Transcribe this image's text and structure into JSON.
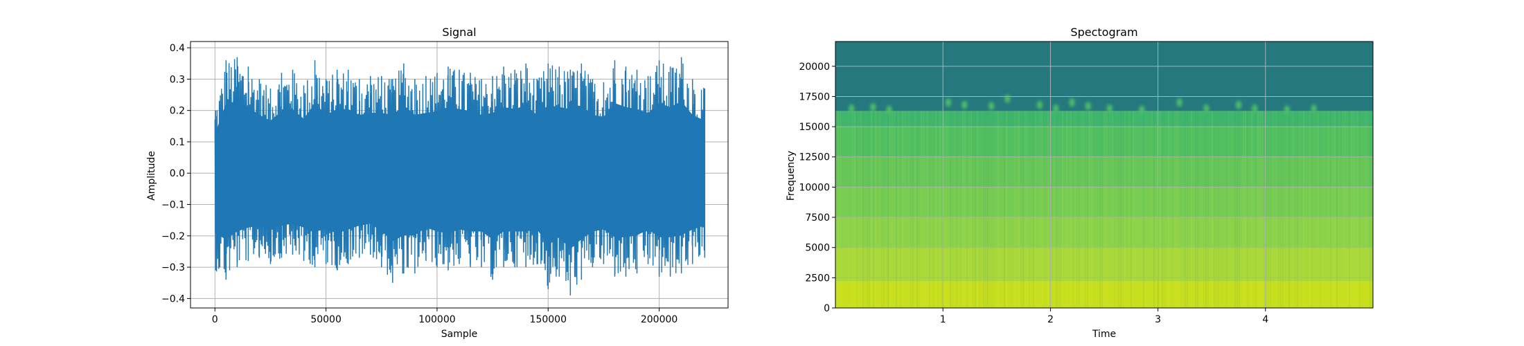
{
  "figure": {
    "background": "#ffffff"
  },
  "chart_data": [
    {
      "type": "line",
      "title": "Signal",
      "xlabel": "Sample",
      "ylabel": "Amplitude",
      "xlim": [
        -11000,
        231000
      ],
      "ylim": [
        -0.43,
        0.42
      ],
      "xticks": [
        0,
        50000,
        100000,
        150000,
        200000
      ],
      "xtick_labels": [
        "0",
        "50000",
        "100000",
        "150000",
        "200000"
      ],
      "yticks": [
        -0.4,
        -0.3,
        -0.2,
        -0.1,
        0.0,
        0.1,
        0.2,
        0.3,
        0.4
      ],
      "ytick_labels": [
        "−0.4",
        "−0.3",
        "−0.2",
        "−0.1",
        "0.0",
        "0.1",
        "0.2",
        "0.3",
        "0.4"
      ],
      "grid": true,
      "color": "#1f77b4",
      "series": [
        {
          "x": [
            0,
            5000,
            10000,
            15000,
            20000,
            25000,
            30000,
            35000,
            40000,
            45000,
            50000,
            55000,
            60000,
            65000,
            70000,
            75000,
            80000,
            85000,
            90000,
            95000,
            100000,
            105000,
            110000,
            115000,
            120000,
            125000,
            130000,
            135000,
            140000,
            145000,
            150000,
            155000,
            160000,
            165000,
            170000,
            175000,
            180000,
            185000,
            190000,
            195000,
            200000,
            205000,
            210000,
            215000,
            220500
          ],
          "max": [
            0.2,
            0.36,
            0.37,
            0.34,
            0.3,
            0.27,
            0.32,
            0.33,
            0.28,
            0.36,
            0.3,
            0.33,
            0.33,
            0.3,
            0.31,
            0.31,
            0.3,
            0.35,
            0.3,
            0.31,
            0.32,
            0.34,
            0.33,
            0.32,
            0.3,
            0.31,
            0.34,
            0.33,
            0.35,
            0.3,
            0.35,
            0.34,
            0.33,
            0.35,
            0.3,
            0.29,
            0.36,
            0.34,
            0.33,
            0.31,
            0.36,
            0.34,
            0.37,
            0.3,
            0.27
          ],
          "min": [
            -0.31,
            -0.34,
            -0.3,
            -0.28,
            -0.27,
            -0.29,
            -0.27,
            -0.26,
            -0.28,
            -0.3,
            -0.29,
            -0.31,
            -0.29,
            -0.27,
            -0.26,
            -0.3,
            -0.35,
            -0.32,
            -0.32,
            -0.28,
            -0.3,
            -0.31,
            -0.29,
            -0.3,
            -0.3,
            -0.34,
            -0.3,
            -0.3,
            -0.3,
            -0.29,
            -0.37,
            -0.33,
            -0.39,
            -0.34,
            -0.3,
            -0.29,
            -0.33,
            -0.33,
            -0.32,
            -0.29,
            -0.33,
            -0.33,
            -0.32,
            -0.29,
            -0.27
          ]
        }
      ]
    },
    {
      "type": "heatmap",
      "title": "Spectogram",
      "xlabel": "Time",
      "ylabel": "Frequency",
      "xlim": [
        0,
        5
      ],
      "ylim": [
        0,
        22050
      ],
      "xticks": [
        1,
        2,
        3,
        4
      ],
      "xtick_labels": [
        "1",
        "2",
        "3",
        "4"
      ],
      "yticks": [
        0,
        2500,
        5000,
        7500,
        10000,
        12500,
        15000,
        17500,
        20000
      ],
      "ytick_labels": [
        "0",
        "2500",
        "5000",
        "7500",
        "10000",
        "12500",
        "15000",
        "17500",
        "20000"
      ],
      "grid": true,
      "colormap": "viridis",
      "frequency_bands": [
        {
          "from": 0,
          "to": 2200,
          "color": "#c8df1e"
        },
        {
          "from": 2200,
          "to": 5000,
          "color": "#a8d83a"
        },
        {
          "from": 5000,
          "to": 7500,
          "color": "#8cd24a"
        },
        {
          "from": 7500,
          "to": 10000,
          "color": "#77cc52"
        },
        {
          "from": 10000,
          "to": 12500,
          "color": "#66c659"
        },
        {
          "from": 12500,
          "to": 15000,
          "color": "#52c060"
        },
        {
          "from": 15000,
          "to": 16300,
          "color": "#3fb66c"
        },
        {
          "from": 16300,
          "to": 22050,
          "color": "#25787d"
        }
      ],
      "bursts": [
        {
          "t": 0.15,
          "f": 16500
        },
        {
          "t": 0.35,
          "f": 16600
        },
        {
          "t": 0.5,
          "f": 16400
        },
        {
          "t": 1.05,
          "f": 17000
        },
        {
          "t": 1.2,
          "f": 16800
        },
        {
          "t": 1.45,
          "f": 16700
        },
        {
          "t": 1.6,
          "f": 17300
        },
        {
          "t": 1.9,
          "f": 16800
        },
        {
          "t": 2.05,
          "f": 16500
        },
        {
          "t": 2.2,
          "f": 17000
        },
        {
          "t": 2.35,
          "f": 16700
        },
        {
          "t": 2.55,
          "f": 16500
        },
        {
          "t": 2.85,
          "f": 16400
        },
        {
          "t": 3.2,
          "f": 17000
        },
        {
          "t": 3.45,
          "f": 16500
        },
        {
          "t": 3.75,
          "f": 16800
        },
        {
          "t": 3.9,
          "f": 16500
        },
        {
          "t": 4.2,
          "f": 16400
        },
        {
          "t": 4.45,
          "f": 16500
        }
      ]
    }
  ]
}
